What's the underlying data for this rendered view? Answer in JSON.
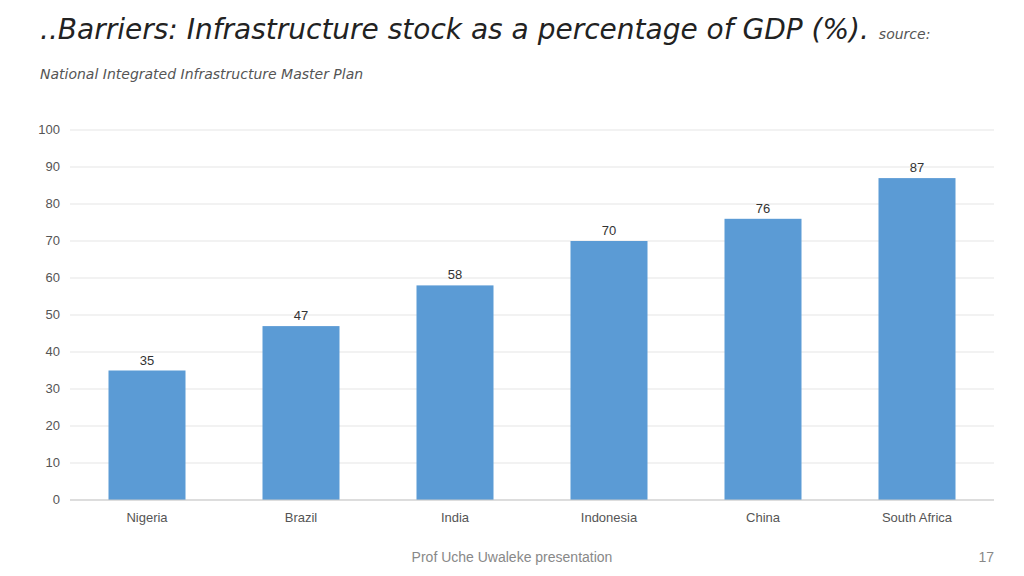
{
  "chart_data": {
    "type": "bar",
    "title": "..Barriers: Infrastructure stock as a percentage of GDP (%).",
    "subtitle": "source: National Integrated Infrastructure Master Plan",
    "categories": [
      "Nigeria",
      "Brazil",
      "India",
      "Indonesia",
      "China",
      "South Africa"
    ],
    "values": [
      35,
      47,
      58,
      70,
      76,
      87
    ],
    "color": "#5B9BD5",
    "ylim": [
      0,
      100
    ],
    "yticks": [
      0,
      10,
      20,
      30,
      40,
      50,
      60,
      70,
      80,
      90,
      100
    ],
    "grid": true,
    "data_labels": true,
    "annotations": [
      "Prof Uche Uwaleke presentation",
      "17"
    ]
  }
}
